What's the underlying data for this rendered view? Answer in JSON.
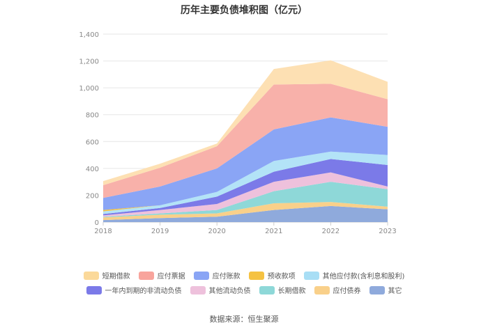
{
  "chart_data": {
    "type": "area",
    "stacked": true,
    "title": "历年主要负债堆积图（亿元）",
    "categories": [
      "2018",
      "2019",
      "2020",
      "2021",
      "2022",
      "2023"
    ],
    "ylim": [
      0,
      1400
    ],
    "yticks": [
      "0",
      "200",
      "400",
      "600",
      "800",
      "1,000",
      "1,200",
      "1,400"
    ],
    "ytick_values": [
      0,
      200,
      400,
      600,
      800,
      1000,
      1200,
      1400
    ],
    "series": [
      {
        "name": "其它",
        "color": "#8faadc",
        "values": [
          15,
          30,
          40,
          90,
          120,
          95
        ]
      },
      {
        "name": "应付债券",
        "color": "#f9d08a",
        "values": [
          20,
          25,
          25,
          50,
          30,
          20
        ]
      },
      {
        "name": "长期借款",
        "color": "#8ed8d8",
        "values": [
          5,
          10,
          25,
          90,
          150,
          130
        ]
      },
      {
        "name": "其他流动负债",
        "color": "#eec1dc",
        "values": [
          10,
          25,
          45,
          70,
          70,
          20
        ]
      },
      {
        "name": "一年内到期的非流动负债",
        "color": "#7b7ae8",
        "values": [
          10,
          15,
          55,
          75,
          100,
          160
        ]
      },
      {
        "name": "其他应付款(含利息和股利)",
        "color": "#b3e3f7",
        "values": [
          20,
          20,
          35,
          80,
          55,
          75
        ]
      },
      {
        "name": "预收款项",
        "color": "#f5c242",
        "values": [
          10,
          0,
          0,
          0,
          0,
          0
        ]
      },
      {
        "name": "应付账款",
        "color": "#8aa5f5",
        "values": [
          90,
          140,
          175,
          235,
          255,
          210
        ]
      },
      {
        "name": "应付票据",
        "color": "#f8b1aa",
        "values": [
          95,
          140,
          165,
          335,
          250,
          205
        ]
      },
      {
        "name": "短期借款",
        "color": "#fde0b3",
        "values": [
          30,
          30,
          20,
          115,
          175,
          130
        ]
      }
    ],
    "legend": [
      [
        "短期借款",
        "应付票据",
        "应付账款",
        "预收款项",
        "其他应付款(含利息和股利)"
      ],
      [
        "一年内到期的非流动负债",
        "其他流动负债",
        "长期借款",
        "应付债券",
        "其它"
      ]
    ],
    "legend_colors": [
      [
        "#fbd99a",
        "#f8a49c",
        "#8aa5f5",
        "#f5c242",
        "#a8def5"
      ],
      [
        "#7b7ae8",
        "#eec1dc",
        "#8ed8d8",
        "#f9d08a",
        "#8faadc"
      ]
    ],
    "source": "数据来源：恒生聚源"
  }
}
